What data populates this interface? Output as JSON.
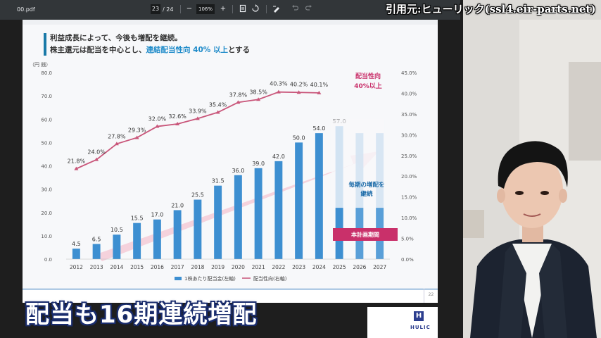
{
  "toolbar": {
    "filename": "00.pdf",
    "page_current": "23",
    "page_total": "/ 24",
    "zoom": "106%",
    "zoom_out": "−",
    "zoom_in": "+"
  },
  "slide": {
    "heading_line1": "利益成長によって、今後も増配を継続。",
    "heading_line2_a": "株主還元は配当を中心とし、",
    "heading_line2_hl": "連結配当性向 40% 以上",
    "heading_line2_b": "とする",
    "page_number": "22"
  },
  "chart_data": {
    "type": "bar+line",
    "categories": [
      "2012",
      "2013",
      "2014",
      "2015",
      "2016",
      "2017",
      "2018",
      "2019",
      "2020",
      "2021",
      "2022",
      "2023",
      "2024",
      "2025",
      "2026",
      "2027"
    ],
    "series": [
      {
        "name": "1株あたり配当金(左軸)",
        "values": [
          4.5,
          6.5,
          10.5,
          15.5,
          17.0,
          21.0,
          25.5,
          31.5,
          36.0,
          39.0,
          42.0,
          50.0,
          54.0,
          57.0,
          null,
          null
        ],
        "labels": [
          "4.5",
          "6.5",
          "10.5",
          "15.5",
          "17.0",
          "21.0",
          "25.5",
          "31.5",
          "36.0",
          "39.0",
          "42.0",
          "50.0",
          "54.0",
          "57.0",
          "",
          ""
        ],
        "color": "#3d8fd1"
      },
      {
        "name": "配当性向(右軸)",
        "values": [
          21.8,
          24.0,
          27.8,
          29.3,
          32.0,
          32.6,
          33.9,
          35.4,
          37.8,
          38.5,
          40.3,
          40.2,
          40.1,
          null,
          null,
          null
        ],
        "labels": [
          "21.8%",
          "24.0%",
          "27.8%",
          "29.3%",
          "32.0%",
          "32.6%",
          "33.9%",
          "35.4%",
          "37.8%",
          "38.5%",
          "40.3%",
          "40.2%",
          "40.1%",
          "",
          "",
          ""
        ],
        "color": "#c9567a"
      }
    ],
    "y_left": {
      "unit": "（円 銭）",
      "range": [
        0,
        80
      ],
      "ticks": [
        "0.0",
        "10.0",
        "20.0",
        "30.0",
        "40.0",
        "50.0",
        "60.0",
        "70.0",
        "80.0"
      ]
    },
    "y_right": {
      "range": [
        0,
        45
      ],
      "ticks": [
        "0.0%",
        "5.0%",
        "10.0%",
        "15.0%",
        "20.0%",
        "25.0%",
        "30.0%",
        "35.0%",
        "40.0%",
        "45.0%"
      ]
    },
    "annotations": {
      "payout_target": "配当性向\n40%以上",
      "continue_increase": "毎期の増配を\n継続",
      "plan_period": "本計画期間"
    },
    "colors": {
      "bar": "#3d8fd1",
      "line": "#c9567a",
      "arrow": "#f4cdd8",
      "plan_box": "#c9306a"
    }
  },
  "caption": "配当も16期連続増配",
  "citation": "引用元:ヒューリック(ssl4.eir-parts.net)",
  "logo": {
    "text": "HULIC",
    "mark": "H"
  }
}
